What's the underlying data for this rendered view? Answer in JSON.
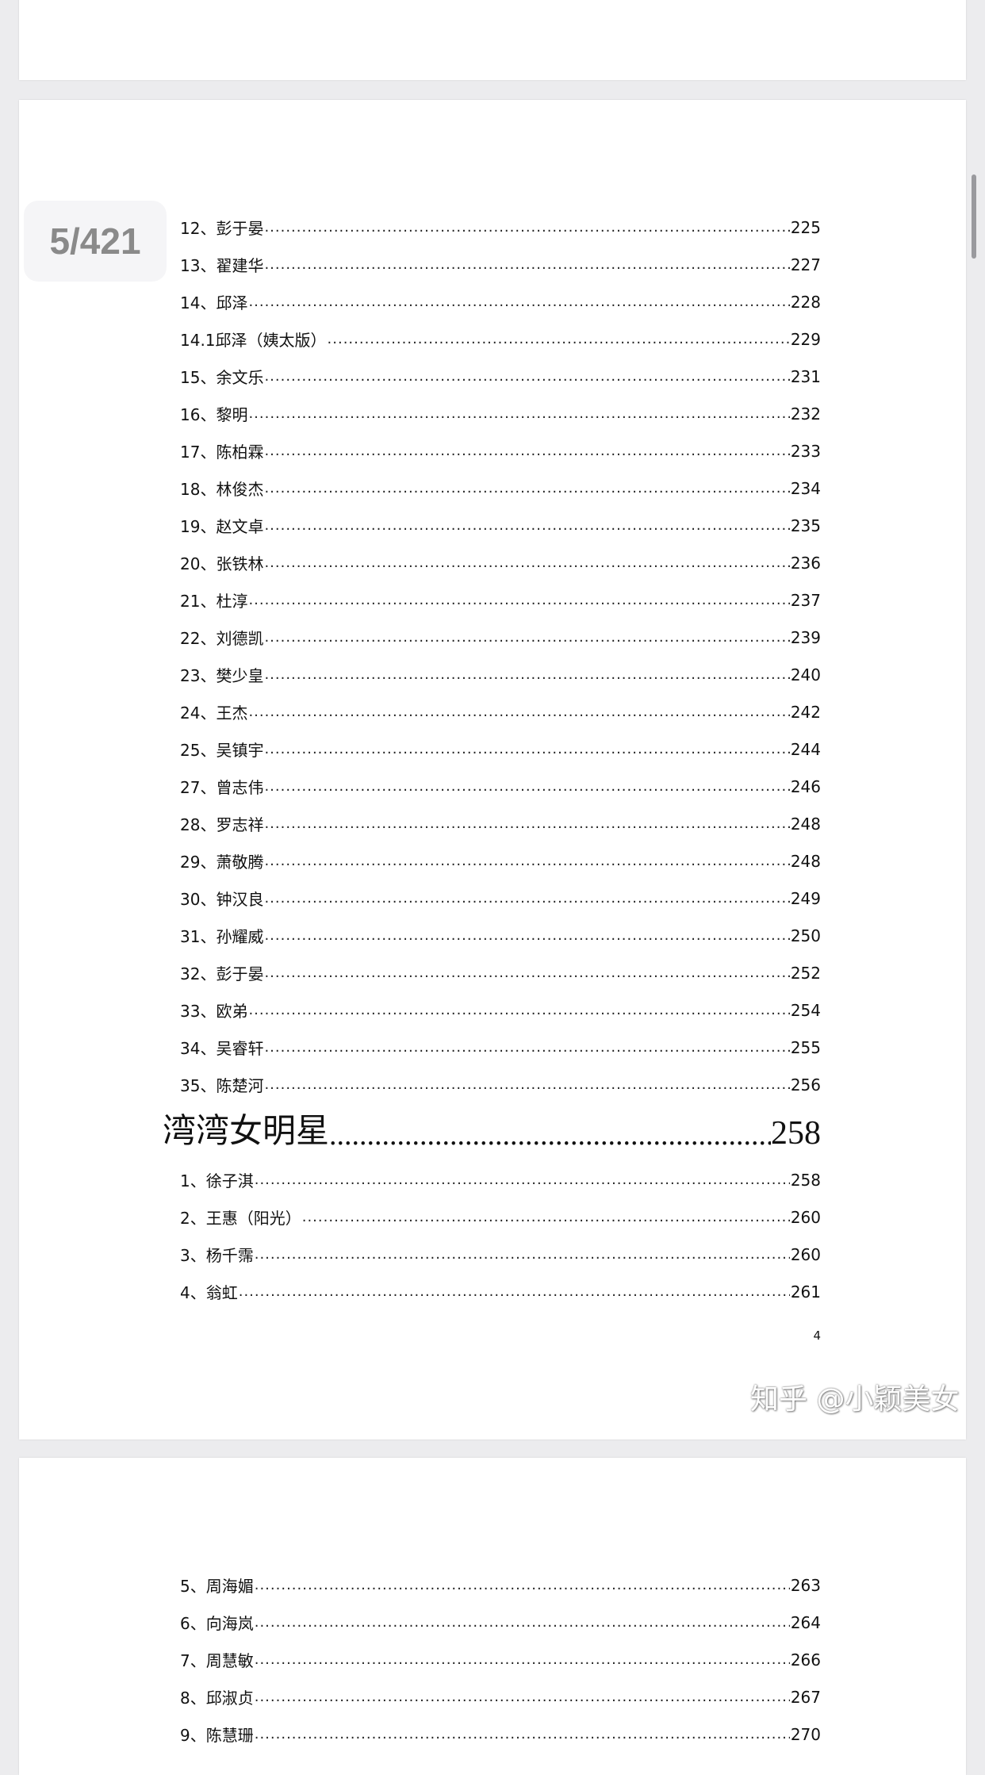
{
  "page_indicator": "5/421",
  "page2": {
    "entries": [
      {
        "label": "12、彭于晏",
        "page": "225"
      },
      {
        "label": "13、翟建华",
        "page": "227"
      },
      {
        "label": "14、邱泽",
        "page": "228"
      },
      {
        "label": "14.1邱泽（姨太版）",
        "page": "229"
      },
      {
        "label": "15、余文乐",
        "page": "231"
      },
      {
        "label": "16、黎明",
        "page": "232"
      },
      {
        "label": "17、陈柏霖",
        "page": "233"
      },
      {
        "label": "18、林俊杰",
        "page": "234"
      },
      {
        "label": "19、赵文卓",
        "page": "235"
      },
      {
        "label": "20、张铁林",
        "page": "236"
      },
      {
        "label": "21、杜淳",
        "page": "237"
      },
      {
        "label": "22、刘德凯",
        "page": "239"
      },
      {
        "label": "23、樊少皇",
        "page": "240"
      },
      {
        "label": "24、王杰",
        "page": "242"
      },
      {
        "label": "25、吴镇宇",
        "page": "244"
      },
      {
        "label": "27、曾志伟",
        "page": "246"
      },
      {
        "label": "28、罗志祥",
        "page": "248"
      },
      {
        "label": "29、萧敬腾",
        "page": "248"
      },
      {
        "label": "30、钟汉良",
        "page": "249"
      },
      {
        "label": "31、孙耀威",
        "page": "250"
      },
      {
        "label": "32、彭于晏",
        "page": "252"
      },
      {
        "label": "33、欧弟",
        "page": "254"
      },
      {
        "label": "34、吴睿轩",
        "page": "255"
      },
      {
        "label": "35、陈楚河",
        "page": "256"
      }
    ],
    "section": {
      "label": "湾湾女明星",
      "page": "258"
    },
    "section_entries": [
      {
        "label": "1、徐子淇",
        "page": "258"
      },
      {
        "label": "2、王惠（阳光）",
        "page": "260"
      },
      {
        "label": "3、杨千霈",
        "page": "260"
      },
      {
        "label": "4、翁虹",
        "page": "261"
      }
    ],
    "page_number": "4"
  },
  "page3": {
    "entries": [
      {
        "label": "5、周海媚",
        "page": "263"
      },
      {
        "label": "6、向海岚",
        "page": "264"
      },
      {
        "label": "7、周慧敏",
        "page": "266"
      },
      {
        "label": "8、邱淑贞",
        "page": "267"
      },
      {
        "label": "9、陈慧珊",
        "page": "270"
      }
    ]
  },
  "watermark": "知乎 @小颖美女"
}
